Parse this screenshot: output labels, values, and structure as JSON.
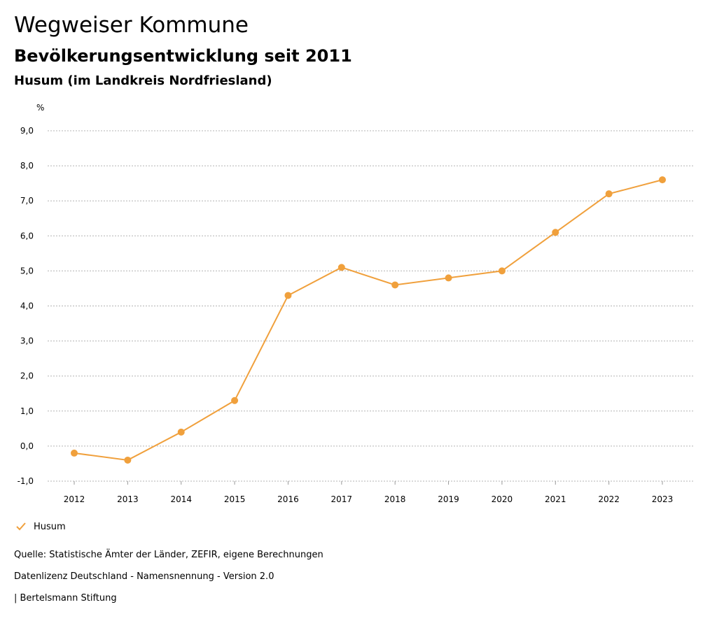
{
  "header": {
    "title": "Wegweiser Kommune",
    "subtitle": "Bevölkerungsentwicklung seit 2011",
    "region": "Husum (im Landkreis Nordfriesland)"
  },
  "chart_data": {
    "type": "line",
    "ylabel": "%",
    "xlabel": "",
    "ylim": [
      -1,
      9
    ],
    "yticks": [
      "-1,0",
      "0,0",
      "1,0",
      "2,0",
      "3,0",
      "4,0",
      "5,0",
      "6,0",
      "7,0",
      "8,0",
      "9,0"
    ],
    "categories": [
      "2012",
      "2013",
      "2014",
      "2015",
      "2016",
      "2017",
      "2018",
      "2019",
      "2020",
      "2021",
      "2022",
      "2023"
    ],
    "series": [
      {
        "name": "Husum",
        "color": "#f0a03c",
        "values": [
          -0.2,
          -0.4,
          0.4,
          1.3,
          4.3,
          5.1,
          4.6,
          4.8,
          5.0,
          6.1,
          7.2,
          7.6
        ]
      }
    ],
    "grid": true,
    "legend": "bottom-left"
  },
  "legend": {
    "label": "Husum",
    "icon": "checkmark-icon"
  },
  "footer": {
    "source": "Quelle: Statistische Ämter der Länder, ZEFIR, eigene Berechnungen",
    "license": "Datenlizenz Deutschland - Namensnennung - Version 2.0",
    "publisher": "| Bertelsmann Stiftung"
  }
}
